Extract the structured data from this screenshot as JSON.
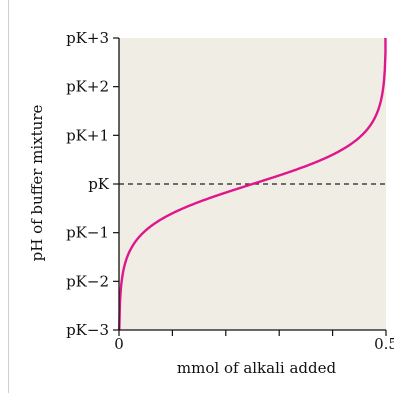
{
  "chart_data": {
    "type": "line",
    "title": "",
    "xlabel": "mmol of alkali added",
    "ylabel": "pH of buffer mixture",
    "xlim": [
      0,
      0.5
    ],
    "ylim": [
      -3,
      3
    ],
    "x_ticks": [
      {
        "value": 0,
        "label": "0"
      },
      {
        "value": 0.5,
        "label": "0.5"
      }
    ],
    "x_minor_ticks": [
      0.1,
      0.2,
      0.3,
      0.4
    ],
    "y_ticks": [
      {
        "value": 3,
        "label": "pK+3"
      },
      {
        "value": 2,
        "label": "pK+2"
      },
      {
        "value": 1,
        "label": "pK+1"
      },
      {
        "value": 0,
        "label": "pK"
      },
      {
        "value": -1,
        "label": "pK−1"
      },
      {
        "value": -2,
        "label": "pK−2"
      },
      {
        "value": -3,
        "label": "pK−3"
      }
    ],
    "reference_line": {
      "y": 0,
      "style": "dashed",
      "color": "#222222"
    },
    "series": [
      {
        "color": "#e0168c",
        "curve": "titration",
        "x": [
          0.0005,
          0.002,
          0.005,
          0.01,
          0.02,
          0.04,
          0.06,
          0.1,
          0.15,
          0.2,
          0.25,
          0.3,
          0.35,
          0.4,
          0.44,
          0.46,
          0.48,
          0.49,
          0.495,
          0.499
        ],
        "y": [
          -3.0,
          -2.4,
          -1.99,
          -1.69,
          -1.38,
          -1.05,
          -0.85,
          -0.6,
          -0.37,
          -0.18,
          0.0,
          0.18,
          0.37,
          0.6,
          0.87,
          1.06,
          1.38,
          1.69,
          1.99,
          2.7
        ]
      }
    ],
    "plot_background": "#f0eee4",
    "grid": false
  }
}
